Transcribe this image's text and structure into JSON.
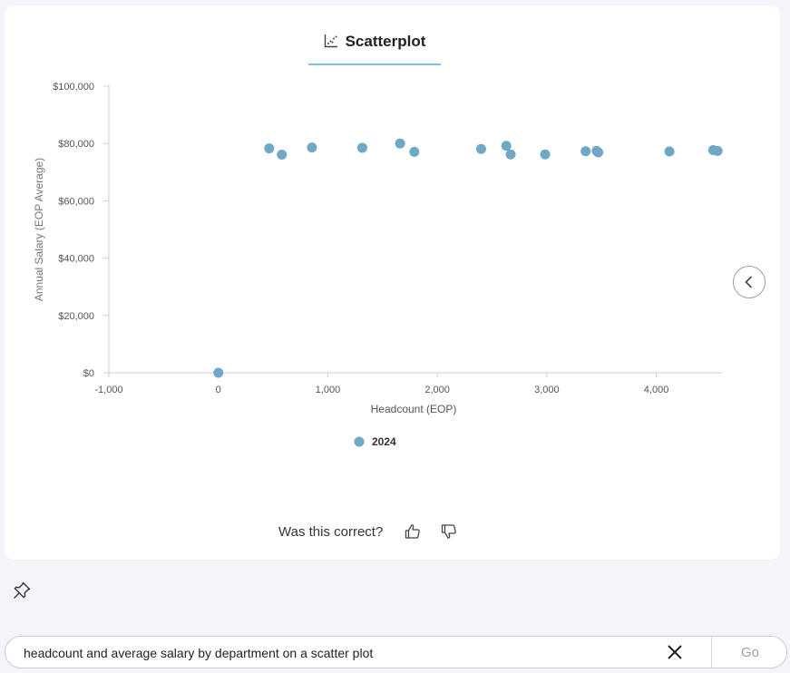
{
  "tab": {
    "label": "Scatterplot",
    "icon": "scatterplot-icon"
  },
  "colors": {
    "point": "#6fa8c7",
    "axis": "#c7cbe0",
    "tab_underline": "#7cc3df"
  },
  "chart_data": {
    "type": "scatter",
    "xlabel": "Headcount (EOP)",
    "ylabel": "Annual Salary (EOP Average)",
    "xlim": [
      -1000,
      4600
    ],
    "ylim": [
      0,
      100000
    ],
    "x_ticks": [
      -1000,
      0,
      1000,
      2000,
      3000,
      4000
    ],
    "x_tick_labels": [
      "-1,000",
      "0",
      "1,000",
      "2,000",
      "3,000",
      "4,000"
    ],
    "y_ticks": [
      0,
      20000,
      40000,
      60000,
      80000,
      100000
    ],
    "y_tick_labels": [
      "$0",
      "$20,000",
      "$40,000",
      "$60,000",
      "$80,000",
      "$100,000"
    ],
    "legend_position": "bottom-center",
    "series": [
      {
        "name": "2024",
        "points": [
          {
            "x": 0,
            "y": 0
          },
          {
            "x": 465,
            "y": 78300
          },
          {
            "x": 580,
            "y": 76100
          },
          {
            "x": 855,
            "y": 78600
          },
          {
            "x": 1315,
            "y": 78500
          },
          {
            "x": 1660,
            "y": 80000
          },
          {
            "x": 1790,
            "y": 77100
          },
          {
            "x": 2400,
            "y": 78100
          },
          {
            "x": 2630,
            "y": 79200
          },
          {
            "x": 2670,
            "y": 76200
          },
          {
            "x": 2985,
            "y": 76200
          },
          {
            "x": 3355,
            "y": 77300
          },
          {
            "x": 3455,
            "y": 77400
          },
          {
            "x": 3470,
            "y": 76900
          },
          {
            "x": 4120,
            "y": 77200
          },
          {
            "x": 4520,
            "y": 77700
          },
          {
            "x": 4560,
            "y": 77400
          }
        ]
      }
    ]
  },
  "feedback": {
    "question": "Was this correct?"
  },
  "search": {
    "value": "headcount and average salary by department on a scatter plot",
    "go_label": "Go"
  }
}
